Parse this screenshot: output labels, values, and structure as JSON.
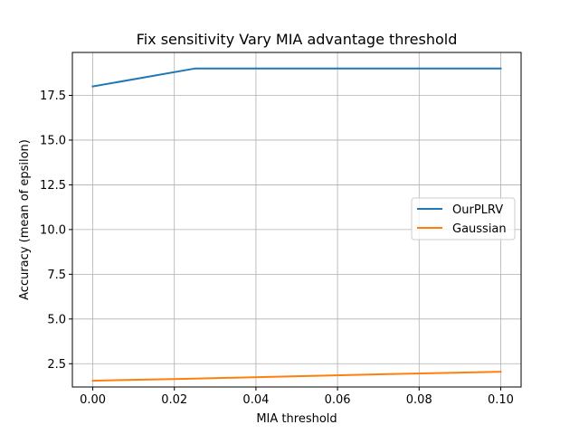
{
  "chart_data": {
    "type": "line",
    "title": "Fix sensitivity Vary MIA advantage threshold",
    "xlabel": "MIA threshold",
    "ylabel": "Accuracy (mean of epsilon)",
    "xlim": [
      -0.005,
      0.105
    ],
    "ylim": [
      1.2,
      19.9
    ],
    "x_ticks": [
      0.0,
      0.02,
      0.04,
      0.06,
      0.08,
      0.1
    ],
    "x_tick_labels": [
      "0.00",
      "0.02",
      "0.04",
      "0.06",
      "0.08",
      "0.10"
    ],
    "y_ticks": [
      2.5,
      5.0,
      7.5,
      10.0,
      12.5,
      15.0,
      17.5
    ],
    "y_tick_labels": [
      "2.5",
      "5.0",
      "7.5",
      "10.0",
      "12.5",
      "15.0",
      "17.5"
    ],
    "grid": true,
    "legend_position": "center-right",
    "series": [
      {
        "name": "OurPLRV",
        "color": "#1f77b4",
        "x": [
          0.0,
          0.025,
          0.05,
          0.075,
          0.1
        ],
        "y": [
          18.0,
          19.0,
          19.0,
          19.0,
          19.0
        ]
      },
      {
        "name": "Gaussian",
        "color": "#ff7f0e",
        "x": [
          0.0,
          0.025,
          0.05,
          0.075,
          0.1
        ],
        "y": [
          1.55,
          1.67,
          1.8,
          1.93,
          2.05
        ]
      }
    ]
  }
}
